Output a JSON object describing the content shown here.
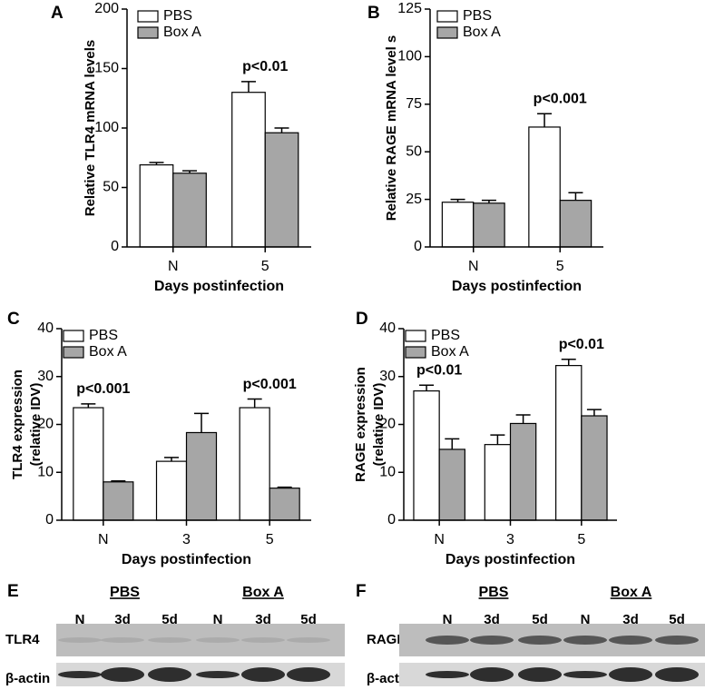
{
  "chart_data": [
    {
      "type": "bar",
      "panel": "A",
      "ylabel": [
        "Relative TLR4 mRNA levels"
      ],
      "xlabel": "Days postinfection",
      "categories": [
        "N",
        "5"
      ],
      "ylim": [
        0,
        200
      ],
      "yticks": [
        0,
        50,
        100,
        150,
        200
      ],
      "series": [
        {
          "name": "PBS",
          "color": "#ffffff",
          "values": [
            69,
            130
          ],
          "errors": [
            2,
            9
          ]
        },
        {
          "name": "Box A",
          "color": "#a6a6a6",
          "values": [
            62,
            96
          ],
          "errors": [
            2,
            4
          ]
        }
      ],
      "annotations": [
        {
          "text": "p<0.01",
          "category": "5"
        }
      ]
    },
    {
      "type": "bar",
      "panel": "B",
      "ylabel": [
        "Relative RAGE mRNA level s"
      ],
      "xlabel": "Days postinfection",
      "categories": [
        "N",
        "5"
      ],
      "ylim": [
        0,
        125
      ],
      "yticks": [
        0,
        25,
        50,
        75,
        100,
        125
      ],
      "series": [
        {
          "name": "PBS",
          "color": "#ffffff",
          "values": [
            23.5,
            63
          ],
          "errors": [
            1.5,
            7
          ]
        },
        {
          "name": "Box A",
          "color": "#a6a6a6",
          "values": [
            23,
            24.5
          ],
          "errors": [
            1.5,
            4
          ]
        }
      ],
      "annotations": [
        {
          "text": "p<0.001",
          "category": "5"
        }
      ]
    },
    {
      "type": "bar",
      "panel": "C",
      "ylabel": [
        "TLR4 expression",
        "(relative IDV)"
      ],
      "xlabel": "Days postinfection",
      "categories": [
        "N",
        "3",
        "5"
      ],
      "ylim": [
        0,
        40
      ],
      "yticks": [
        0,
        10,
        20,
        30,
        40
      ],
      "series": [
        {
          "name": "PBS",
          "color": "#ffffff",
          "values": [
            23.5,
            12.3,
            23.5
          ],
          "errors": [
            0.8,
            0.8,
            1.8
          ]
        },
        {
          "name": "Box A",
          "color": "#a6a6a6",
          "values": [
            8,
            18.3,
            6.7
          ],
          "errors": [
            0.2,
            4,
            0.2
          ]
        }
      ],
      "annotations": [
        {
          "text": "p<0.001",
          "category": "N"
        },
        {
          "text": "p<0.001",
          "category": "5"
        }
      ]
    },
    {
      "type": "bar",
      "panel": "D",
      "ylabel": [
        "RAGE expression",
        "(relative IDV)"
      ],
      "xlabel": "Days postinfection",
      "categories": [
        "N",
        "3",
        "5"
      ],
      "ylim": [
        0,
        40
      ],
      "yticks": [
        0,
        10,
        20,
        30,
        40
      ],
      "series": [
        {
          "name": "PBS",
          "color": "#ffffff",
          "values": [
            27,
            15.8,
            32.3
          ],
          "errors": [
            1.2,
            2,
            1.3
          ]
        },
        {
          "name": "Box A",
          "color": "#a6a6a6",
          "values": [
            14.8,
            20.2,
            21.8
          ],
          "errors": [
            2.2,
            1.8,
            1.3
          ]
        }
      ],
      "annotations": [
        {
          "text": "p<0.01",
          "category": "N"
        },
        {
          "text": "p<0.01",
          "category": "5"
        }
      ]
    }
  ],
  "blots": [
    {
      "panel": "E",
      "groups": [
        "PBS",
        "Box A"
      ],
      "lanes": [
        "N",
        "3d",
        "5d",
        "N",
        "3d",
        "5d"
      ],
      "rows": [
        "TLR4",
        "β-actin"
      ]
    },
    {
      "panel": "F",
      "groups": [
        "PBS",
        "Box A"
      ],
      "lanes": [
        "N",
        "3d",
        "5d",
        "N",
        "3d",
        "5d"
      ],
      "rows": [
        "RAGE",
        "β-actin"
      ]
    }
  ]
}
